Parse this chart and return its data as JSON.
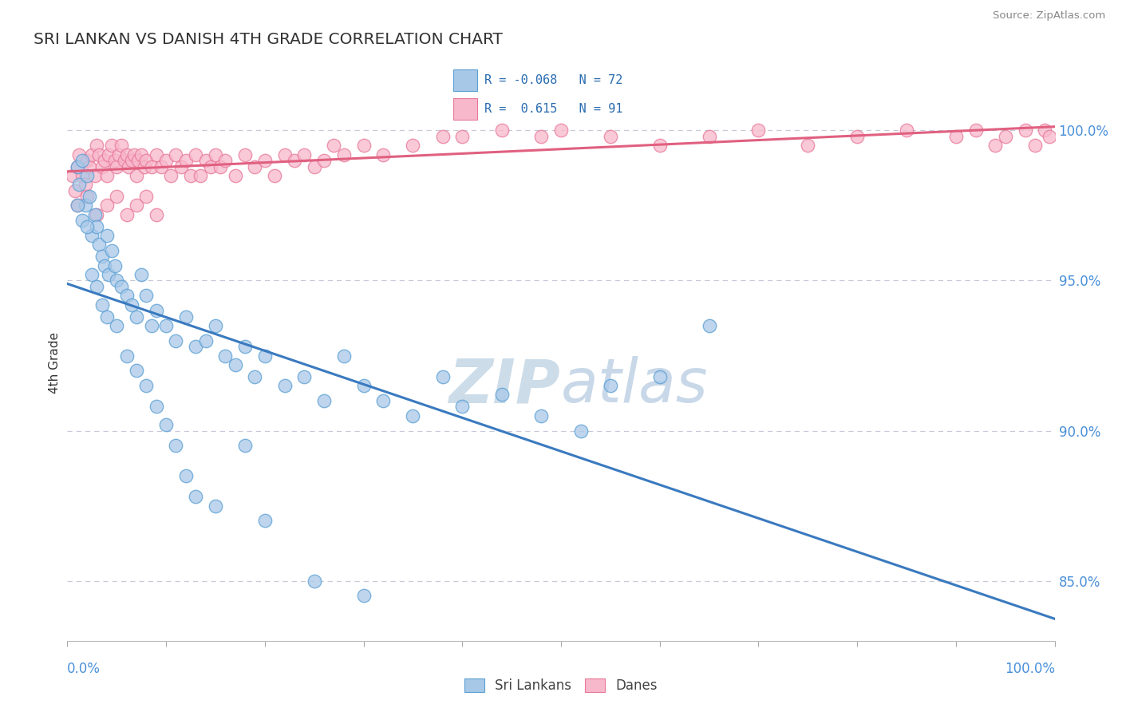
{
  "title": "SRI LANKAN VS DANISH 4TH GRADE CORRELATION CHART",
  "source": "Source: ZipAtlas.com",
  "ylabel": "4th Grade",
  "xlim": [
    0.0,
    100.0
  ],
  "ylim": [
    83.0,
    101.5
  ],
  "yticks": [
    85.0,
    90.0,
    95.0,
    100.0
  ],
  "ytick_labels": [
    "85.0%",
    "90.0%",
    "95.0%",
    "100.0%"
  ],
  "r_sri": -0.068,
  "n_sri": 72,
  "r_danish": 0.615,
  "n_danish": 91,
  "blue_color": "#a8c8e8",
  "blue_edge": "#5a9fd4",
  "blue_line": "#3a7abf",
  "pink_color": "#f8b8cc",
  "pink_edge": "#e87898",
  "pink_line": "#e06080",
  "watermark_color": "#d0e4f4",
  "sri_x": [
    1.0,
    1.2,
    1.5,
    1.8,
    2.0,
    2.2,
    2.5,
    2.8,
    3.0,
    3.2,
    3.5,
    3.8,
    4.0,
    4.2,
    4.5,
    4.8,
    5.0,
    5.5,
    6.0,
    6.5,
    7.0,
    7.5,
    8.0,
    8.5,
    9.0,
    10.0,
    11.0,
    12.0,
    13.0,
    14.0,
    15.0,
    16.0,
    17.0,
    18.0,
    19.0,
    20.0,
    22.0,
    24.0,
    26.0,
    28.0,
    30.0,
    32.0,
    35.0,
    38.0,
    40.0,
    44.0,
    48.0,
    52.0,
    55.0,
    60.0,
    65.0,
    1.0,
    1.5,
    2.0,
    2.5,
    3.0,
    3.5,
    4.0,
    5.0,
    6.0,
    7.0,
    8.0,
    9.0,
    10.0,
    11.0,
    12.0,
    13.0,
    15.0,
    18.0,
    20.0,
    25.0,
    30.0
  ],
  "sri_y": [
    98.8,
    98.2,
    99.0,
    97.5,
    98.5,
    97.8,
    96.5,
    97.2,
    96.8,
    96.2,
    95.8,
    95.5,
    96.5,
    95.2,
    96.0,
    95.5,
    95.0,
    94.8,
    94.5,
    94.2,
    93.8,
    95.2,
    94.5,
    93.5,
    94.0,
    93.5,
    93.0,
    93.8,
    92.8,
    93.0,
    93.5,
    92.5,
    92.2,
    92.8,
    91.8,
    92.5,
    91.5,
    91.8,
    91.0,
    92.5,
    91.5,
    91.0,
    90.5,
    91.8,
    90.8,
    91.2,
    90.5,
    90.0,
    91.5,
    91.8,
    93.5,
    97.5,
    97.0,
    96.8,
    95.2,
    94.8,
    94.2,
    93.8,
    93.5,
    92.5,
    92.0,
    91.5,
    90.8,
    90.2,
    89.5,
    88.5,
    87.8,
    87.5,
    89.5,
    87.0,
    85.0,
    84.5
  ],
  "danes_x": [
    0.5,
    0.8,
    1.0,
    1.2,
    1.5,
    1.8,
    2.0,
    2.2,
    2.5,
    2.8,
    3.0,
    3.2,
    3.5,
    3.8,
    4.0,
    4.2,
    4.5,
    4.8,
    5.0,
    5.2,
    5.5,
    5.8,
    6.0,
    6.2,
    6.5,
    6.8,
    7.0,
    7.2,
    7.5,
    7.8,
    8.0,
    8.5,
    9.0,
    9.5,
    10.0,
    10.5,
    11.0,
    11.5,
    12.0,
    12.5,
    13.0,
    13.5,
    14.0,
    14.5,
    15.0,
    15.5,
    16.0,
    17.0,
    18.0,
    19.0,
    20.0,
    21.0,
    22.0,
    23.0,
    24.0,
    25.0,
    26.0,
    27.0,
    28.0,
    30.0,
    32.0,
    35.0,
    38.0,
    40.0,
    44.0,
    48.0,
    50.0,
    55.0,
    60.0,
    65.0,
    70.0,
    75.0,
    80.0,
    85.0,
    90.0,
    92.0,
    94.0,
    95.0,
    97.0,
    98.0,
    99.0,
    99.5,
    1.0,
    2.0,
    3.0,
    4.0,
    5.0,
    6.0,
    7.0,
    8.0,
    9.0
  ],
  "danes_y": [
    98.5,
    98.0,
    98.8,
    99.2,
    98.5,
    98.2,
    99.0,
    98.8,
    99.2,
    98.5,
    99.5,
    99.2,
    98.8,
    99.0,
    98.5,
    99.2,
    99.5,
    99.0,
    98.8,
    99.2,
    99.5,
    99.0,
    99.2,
    98.8,
    99.0,
    99.2,
    98.5,
    99.0,
    99.2,
    98.8,
    99.0,
    98.8,
    99.2,
    98.8,
    99.0,
    98.5,
    99.2,
    98.8,
    99.0,
    98.5,
    99.2,
    98.5,
    99.0,
    98.8,
    99.2,
    98.8,
    99.0,
    98.5,
    99.2,
    98.8,
    99.0,
    98.5,
    99.2,
    99.0,
    99.2,
    98.8,
    99.0,
    99.5,
    99.2,
    99.5,
    99.2,
    99.5,
    99.8,
    99.8,
    100.0,
    99.8,
    100.0,
    99.8,
    99.5,
    99.8,
    100.0,
    99.5,
    99.8,
    100.0,
    99.8,
    100.0,
    99.5,
    99.8,
    100.0,
    99.5,
    100.0,
    99.8,
    97.5,
    97.8,
    97.2,
    97.5,
    97.8,
    97.2,
    97.5,
    97.8,
    97.2
  ]
}
